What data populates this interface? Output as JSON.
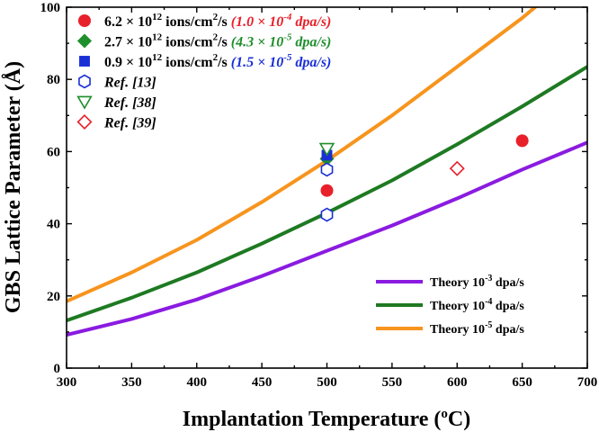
{
  "chart_data": {
    "type": "scatter",
    "xlabel": "Implantation Temperature (",
    "xlabel_sup": "o",
    "xlabel_unit": "C)",
    "ylabel": "GBS Lattice Parameter (Å)",
    "xlim": [
      300,
      700
    ],
    "ylim": [
      0,
      100
    ],
    "xticks": [
      300,
      350,
      400,
      450,
      500,
      550,
      600,
      650,
      700
    ],
    "yticks": [
      0,
      20,
      40,
      60,
      80,
      100
    ],
    "grid": false,
    "scatter_legend_placement": "top-left",
    "line_legend_placement": "bottom-right",
    "series": [
      {
        "name_base": "6.2 × 10",
        "name_exp": "12",
        "name_mid": " ions/cm",
        "name_mid_exp": "2",
        "name_tail": "/s ",
        "name_rate_base": "(1.0 × 10",
        "name_rate_exp": "-4",
        "name_rate_tail": " dpa/s)",
        "marker": "circle-filled",
        "color": "#e8202a",
        "points": [
          {
            "x": 500,
            "y": 49.2
          },
          {
            "x": 650,
            "y": 63.0
          }
        ]
      },
      {
        "name_base": "2.7 × 10",
        "name_exp": "12",
        "name_mid": " ions/cm",
        "name_mid_exp": "2",
        "name_tail": "/s ",
        "name_rate_base": "(4.3 × 10",
        "name_rate_exp": "-5",
        "name_rate_tail": " dpa/s)",
        "marker": "diamond-filled",
        "color": "#1e8f2c",
        "points": [
          {
            "x": 500,
            "y": 58.0
          }
        ]
      },
      {
        "name_base": "0.9 × 10",
        "name_exp": "12",
        "name_mid": " ions/cm",
        "name_mid_exp": "2",
        "name_tail": "/s ",
        "name_rate_base": "(1.5 × 10",
        "name_rate_exp": "-5",
        "name_rate_tail": " dpa/s)",
        "marker": "square-filled",
        "color": "#1a2fd6",
        "points": [
          {
            "x": 500,
            "y": 59.0
          }
        ]
      },
      {
        "name": "Ref. [13]",
        "marker": "hexagon-open",
        "color": "#1a2fd6",
        "points": [
          {
            "x": 500,
            "y": 42.5
          },
          {
            "x": 500,
            "y": 55.0
          }
        ]
      },
      {
        "name": "Ref. [38]",
        "marker": "triangle-down-open",
        "color": "#1e8f2c",
        "points": [
          {
            "x": 500,
            "y": 60.8
          }
        ]
      },
      {
        "name": "Ref. [39]",
        "marker": "diamond-open",
        "color": "#e8202a",
        "points": [
          {
            "x": 600,
            "y": 55.3
          }
        ]
      }
    ],
    "lines": [
      {
        "name_base": "Theory 10",
        "name_exp": "-3",
        "name_tail": " dpa/s",
        "color": "#8a1be0",
        "x": [
          300,
          350,
          400,
          450,
          500,
          550,
          600,
          650,
          700
        ],
        "y": [
          9.2,
          13.6,
          19.0,
          25.5,
          32.5,
          39.5,
          47.0,
          55.0,
          62.5
        ]
      },
      {
        "name_base": "Theory 10",
        "name_exp": "-4",
        "name_tail": " dpa/s",
        "color": "#1e7a22",
        "x": [
          300,
          350,
          400,
          450,
          500,
          550,
          600,
          650,
          700
        ],
        "y": [
          13.2,
          19.5,
          26.5,
          34.5,
          43.0,
          52.0,
          62.0,
          72.5,
          83.5
        ]
      },
      {
        "name_base": "Theory 10",
        "name_exp": "-5",
        "name_tail": " dpa/s",
        "color": "#f7941d",
        "x": [
          300,
          350,
          400,
          450,
          500,
          550,
          600,
          650,
          673
        ],
        "y": [
          18.5,
          26.5,
          35.5,
          46.0,
          57.5,
          70.0,
          83.5,
          97.0,
          104.0
        ]
      }
    ]
  }
}
